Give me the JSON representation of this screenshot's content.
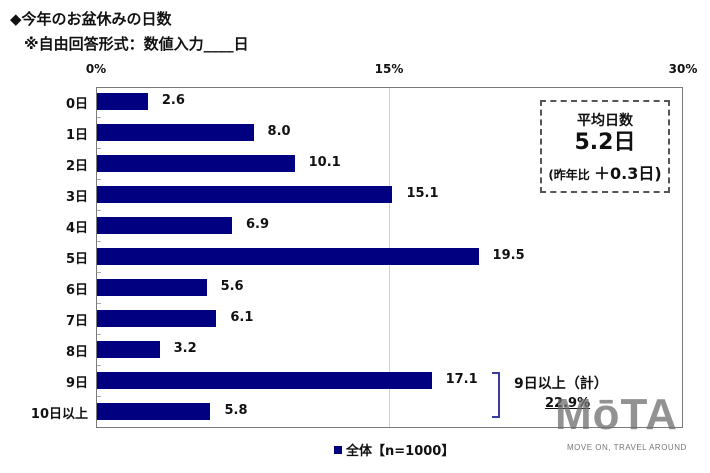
{
  "header": {
    "title": "◆今年のお盆休みの日数",
    "subtitle": "※自由回答形式：数値入力____日"
  },
  "axis": {
    "ticks": [
      "0%",
      "15%",
      "30%"
    ]
  },
  "average_box": {
    "title": "平均日数",
    "value": "5.2日",
    "note_prefix": "(昨年比",
    "note_change": "＋0.3日)"
  },
  "summary": {
    "label": "9日以上（計）",
    "value": "22.9%"
  },
  "legend": {
    "label": "全体【n=1000】",
    "color": "#000080"
  },
  "watermark": {
    "logo": "MōTA",
    "tagline": "MOVE ON, TRAVEL AROUND"
  },
  "chart_data": {
    "type": "bar",
    "orientation": "horizontal",
    "title": "◆今年のお盆休みの日数",
    "subtitle": "※自由回答形式：数値入力____日",
    "categories": [
      "0日",
      "1日",
      "2日",
      "3日",
      "4日",
      "5日",
      "6日",
      "7日",
      "8日",
      "9日",
      "10日以上"
    ],
    "series": [
      {
        "name": "全体【n=1000】",
        "color": "#000080",
        "values": [
          2.6,
          8.0,
          10.1,
          15.1,
          6.9,
          19.5,
          5.6,
          6.1,
          3.2,
          17.1,
          5.8
        ]
      }
    ],
    "value_labels": [
      "2.6",
      "8.0",
      "10.1",
      "15.1",
      "6.9",
      "19.5",
      "5.6",
      "6.1",
      "3.2",
      "17.1",
      "5.8"
    ],
    "xlabel": "",
    "ylabel": "",
    "xlim": [
      0,
      30
    ],
    "xticks": [
      "0%",
      "15%",
      "30%"
    ],
    "grid": "vertical line at 15%",
    "legend_position": "bottom",
    "annotations": [
      "平均日数 5.2日 (昨年比 ＋0.3日)",
      "9日以上（計） 22.9%"
    ]
  }
}
